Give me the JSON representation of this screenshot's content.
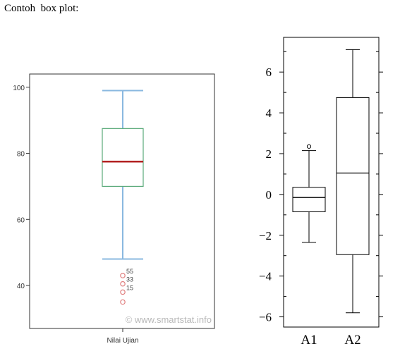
{
  "caption": "Contoh  box plot:",
  "chart_data": [
    {
      "type": "box",
      "xlabel": "",
      "ylabel": "",
      "ylim": [
        27,
        104
      ],
      "yticks": [
        40,
        60,
        80,
        100
      ],
      "ytick_labels": [
        "40",
        "60",
        "80",
        "100"
      ],
      "grid": false,
      "categories": [
        "Nilai Ujian"
      ],
      "boxes": [
        {
          "name": "Nilai Ujian",
          "whisker_low": 48,
          "q1": 70,
          "median": 77.5,
          "q3": 87.5,
          "whisker_high": 99
        }
      ],
      "outliers": [
        {
          "value": 43,
          "label": "55"
        },
        {
          "value": 40.5,
          "label": "33"
        },
        {
          "value": 38,
          "label": "15"
        },
        {
          "value": 35,
          "label": ""
        }
      ],
      "watermark": "© www.smartstat.info",
      "colors": {
        "whisker": "#8ab8e0",
        "box": "#5aaa7a",
        "median": "#b22020",
        "outlier": "#e08080"
      }
    },
    {
      "type": "box",
      "xlabel": "",
      "ylabel": "",
      "ylim": [
        -6.5,
        7.7
      ],
      "yticks": [
        -6,
        -4,
        -2,
        0,
        2,
        4,
        6
      ],
      "ytick_labels": [
        "−6",
        "−4",
        "−2",
        "0",
        "2",
        "4",
        "6"
      ],
      "grid": false,
      "categories": [
        "A1",
        "A2"
      ],
      "boxes": [
        {
          "name": "A1",
          "whisker_low": -2.35,
          "q1": -0.85,
          "median": -0.15,
          "q3": 0.35,
          "whisker_high": 2.15
        },
        {
          "name": "A2",
          "whisker_low": -5.8,
          "q1": -2.95,
          "median": 1.05,
          "q3": 4.75,
          "whisker_high": 7.1
        }
      ],
      "outliers": [
        {
          "category": "A1",
          "value": 2.35
        }
      ],
      "colors": {
        "line": "#000000"
      }
    }
  ]
}
